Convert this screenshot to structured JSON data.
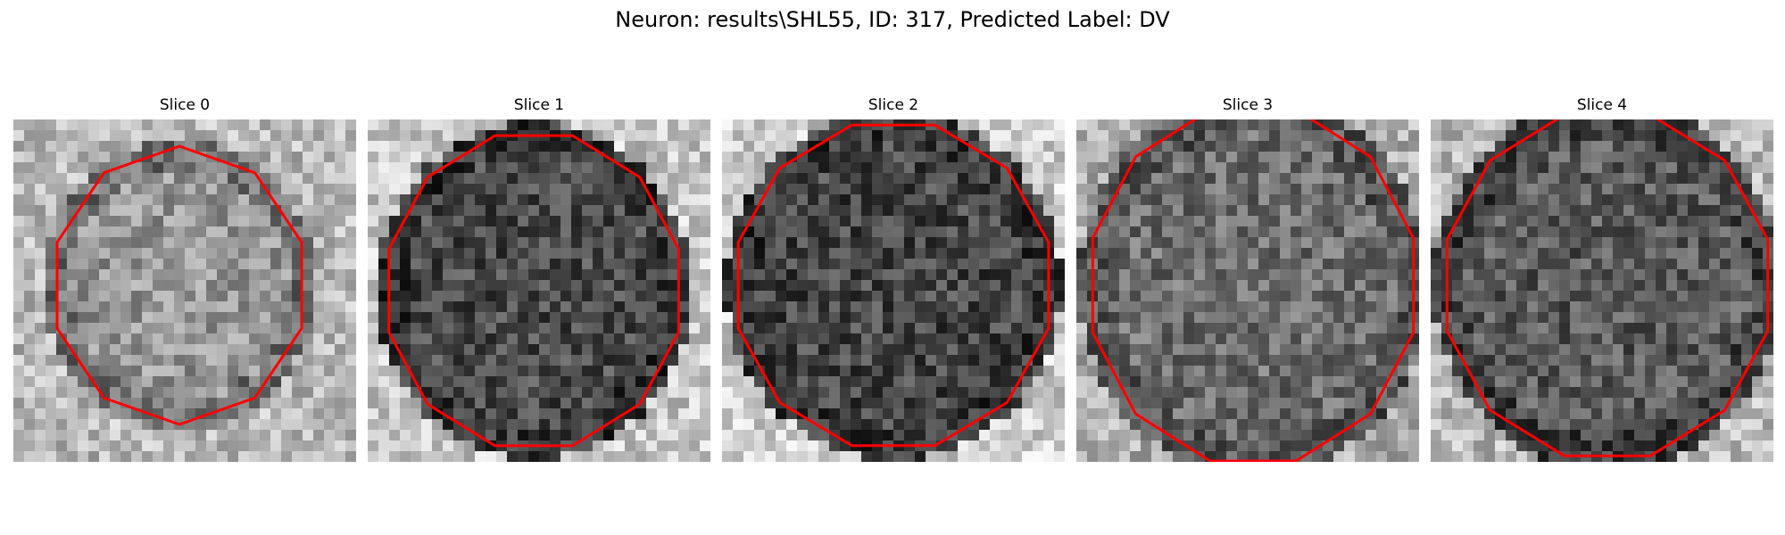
{
  "figure": {
    "title": "Neuron: results\\SHL55, ID: 317, Predicted Label: DV"
  },
  "slices": [
    {
      "label": "Slice 0"
    },
    {
      "label": "Slice 1"
    },
    {
      "label": "Slice 2"
    },
    {
      "label": "Slice 3"
    },
    {
      "label": "Slice 4"
    }
  ],
  "colors": {
    "contour": "#ff0000",
    "background": "#ffffff"
  }
}
